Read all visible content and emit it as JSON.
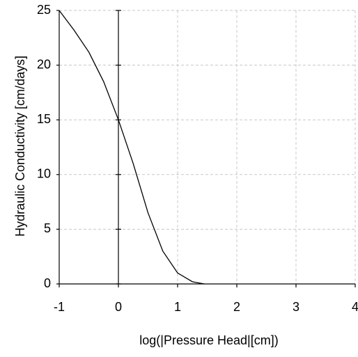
{
  "chart_data": {
    "type": "line",
    "x_label": "log(|Pressure Head|[cm])",
    "y_label": "Hydraulic Conductivity [cm/days]",
    "x": [
      -1,
      -0.75,
      -0.5,
      -0.25,
      0,
      0.25,
      0.5,
      0.75,
      1,
      1.25,
      1.45
    ],
    "series": [
      {
        "color": "#000000",
        "values": [
          25,
          23.2,
          21.2,
          18.5,
          15,
          11,
          6.5,
          3,
          1,
          0.2,
          0
        ]
      }
    ],
    "xlim": [
      -1,
      4
    ],
    "xticks": [
      -1,
      0,
      1,
      2,
      3,
      4
    ],
    "ylim": [
      0,
      25
    ],
    "yticks": [
      0,
      5,
      10,
      15,
      20,
      25
    ],
    "grid": true
  }
}
